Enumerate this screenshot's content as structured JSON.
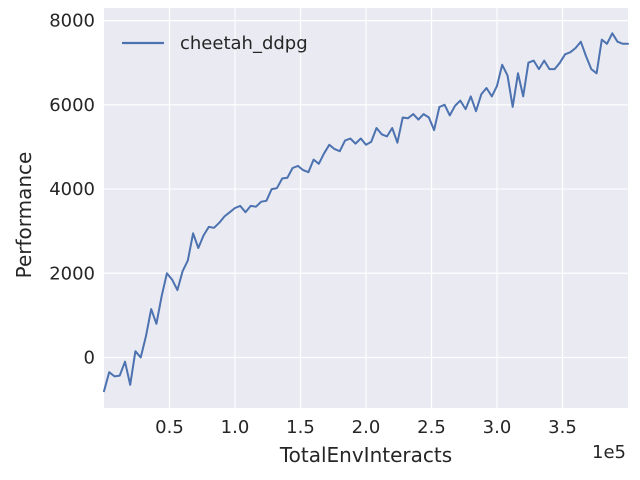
{
  "chart_data": {
    "type": "line",
    "title": "",
    "xlabel": "TotalEnvInteracts",
    "ylabel": "Performance",
    "x_offset_label": "1e5",
    "xlim": [
      0,
      400000
    ],
    "ylim": [
      -1200,
      8300
    ],
    "xtick_values": [
      50000,
      100000,
      150000,
      200000,
      250000,
      300000,
      350000
    ],
    "xtick_labels": [
      "0.5",
      "1.0",
      "1.5",
      "2.0",
      "2.5",
      "3.0",
      "3.5"
    ],
    "ytick_values": [
      0,
      2000,
      4000,
      6000,
      8000
    ],
    "ytick_labels": [
      "0",
      "2000",
      "4000",
      "6000",
      "8000"
    ],
    "grid": true,
    "legend_position": "top-left",
    "series": [
      {
        "name": "cheetah_ddpg",
        "color": "#4c72b0",
        "x": [
          0,
          4000,
          8000,
          12000,
          16000,
          20000,
          24000,
          28000,
          32000,
          36000,
          40000,
          44000,
          48000,
          52000,
          56000,
          60000,
          64000,
          68000,
          72000,
          76000,
          80000,
          84000,
          88000,
          92000,
          96000,
          100000,
          104000,
          108000,
          112000,
          116000,
          120000,
          124000,
          128000,
          132000,
          136000,
          140000,
          144000,
          148000,
          152000,
          156000,
          160000,
          164000,
          168000,
          172000,
          176000,
          180000,
          184000,
          188000,
          192000,
          196000,
          200000,
          204000,
          208000,
          212000,
          216000,
          220000,
          224000,
          228000,
          232000,
          236000,
          240000,
          244000,
          248000,
          252000,
          256000,
          260000,
          264000,
          268000,
          272000,
          276000,
          280000,
          284000,
          288000,
          292000,
          296000,
          300000,
          304000,
          308000,
          312000,
          316000,
          320000,
          324000,
          328000,
          332000,
          336000,
          340000,
          344000,
          348000,
          352000,
          356000,
          360000,
          364000,
          368000,
          372000,
          376000,
          380000,
          384000,
          388000,
          392000,
          396000,
          400000
        ],
        "y": [
          -800,
          -350,
          -450,
          -430,
          -100,
          -650,
          150,
          0,
          500,
          1150,
          800,
          1450,
          2000,
          1850,
          1600,
          2050,
          2300,
          2950,
          2600,
          2900,
          3100,
          3080,
          3200,
          3350,
          3450,
          3550,
          3600,
          3450,
          3600,
          3580,
          3700,
          3720,
          4000,
          4020,
          4250,
          4270,
          4500,
          4550,
          4450,
          4400,
          4700,
          4600,
          4850,
          5050,
          4950,
          4900,
          5150,
          5200,
          5080,
          5200,
          5050,
          5120,
          5450,
          5300,
          5250,
          5450,
          5100,
          5700,
          5680,
          5780,
          5650,
          5780,
          5700,
          5400,
          5950,
          6000,
          5750,
          5980,
          6100,
          5900,
          6200,
          5850,
          6250,
          6400,
          6200,
          6450,
          6950,
          6700,
          5950,
          6750,
          6200,
          7000,
          7050,
          6850,
          7050,
          6850,
          6850,
          7000,
          7200,
          7250,
          7350,
          7500,
          7150,
          6850,
          6750,
          7550,
          7450,
          7700,
          7500,
          7450,
          7450
        ]
      }
    ]
  }
}
